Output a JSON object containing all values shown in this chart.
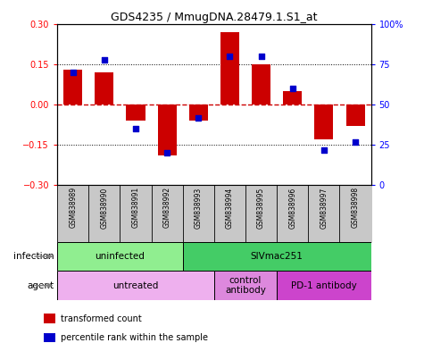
{
  "title": "GDS4235 / MmugDNA.28479.1.S1_at",
  "samples": [
    "GSM838989",
    "GSM838990",
    "GSM838991",
    "GSM838992",
    "GSM838993",
    "GSM838994",
    "GSM838995",
    "GSM838996",
    "GSM838997",
    "GSM838998"
  ],
  "transformed_count": [
    0.13,
    0.12,
    -0.06,
    -0.19,
    -0.06,
    0.27,
    0.15,
    0.05,
    -0.13,
    -0.08
  ],
  "percentile_rank": [
    70,
    78,
    35,
    20,
    42,
    80,
    80,
    60,
    22,
    27
  ],
  "ylim_left": [
    -0.3,
    0.3
  ],
  "ylim_right": [
    0,
    100
  ],
  "yticks_left": [
    -0.3,
    -0.15,
    0,
    0.15,
    0.3
  ],
  "yticks_right": [
    0,
    25,
    50,
    75,
    100
  ],
  "infection_groups": [
    {
      "label": "uninfected",
      "start": 0,
      "end": 3,
      "color": "#90EE90"
    },
    {
      "label": "SIVmac251",
      "start": 4,
      "end": 9,
      "color": "#44CC66"
    }
  ],
  "agent_groups": [
    {
      "label": "untreated",
      "start": 0,
      "end": 4,
      "color": "#EEB0EE"
    },
    {
      "label": "control\nantibody",
      "start": 5,
      "end": 6,
      "color": "#DD88DD"
    },
    {
      "label": "PD-1 antibody",
      "start": 7,
      "end": 9,
      "color": "#CC44CC"
    }
  ],
  "bar_color": "#CC0000",
  "dot_color": "#0000CC",
  "zero_line_color": "#CC0000",
  "dotted_line_color": "#000000",
  "infection_label": "infection",
  "agent_label": "agent",
  "sample_bg_color": "#C8C8C8",
  "legend_items": [
    {
      "color": "#CC0000",
      "label": "transformed count"
    },
    {
      "color": "#0000CC",
      "label": "percentile rank within the sample"
    }
  ]
}
